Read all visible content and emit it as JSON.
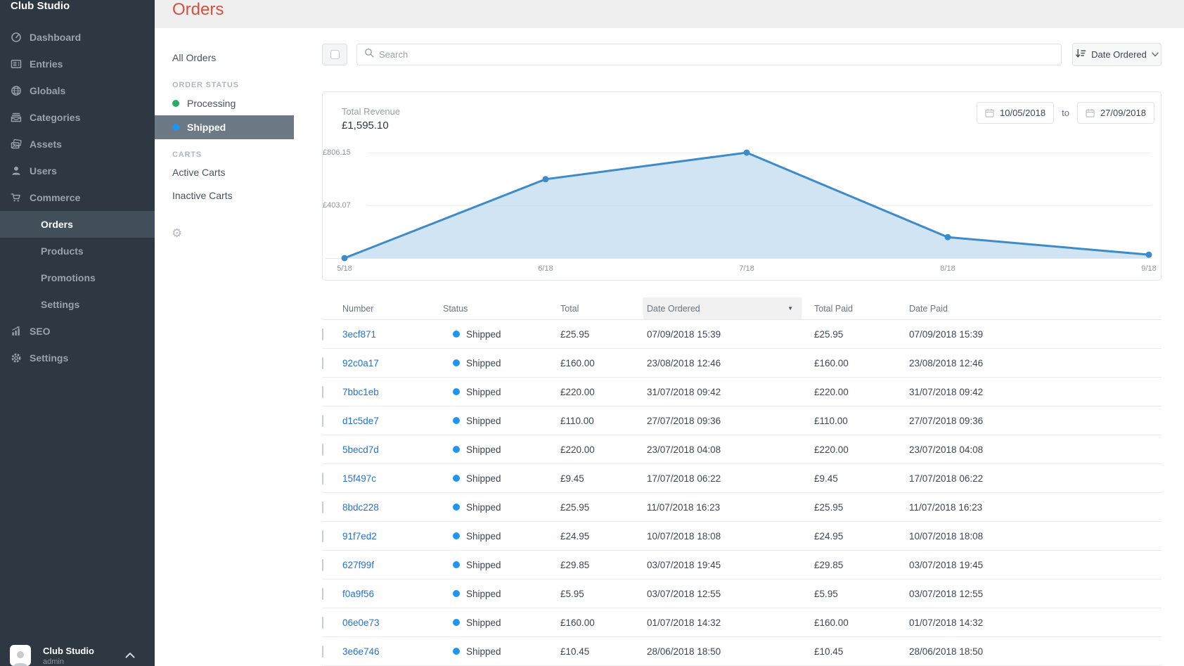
{
  "brand": "Club Studio",
  "page_title": "Orders",
  "sidebar": {
    "items": [
      {
        "label": "Dashboard",
        "icon": "gauge-icon"
      },
      {
        "label": "Entries",
        "icon": "entries-icon"
      },
      {
        "label": "Globals",
        "icon": "globe-icon"
      },
      {
        "label": "Categories",
        "icon": "categories-icon"
      },
      {
        "label": "Assets",
        "icon": "assets-icon"
      },
      {
        "label": "Users",
        "icon": "user-icon"
      },
      {
        "label": "Commerce",
        "icon": "cart-icon"
      }
    ],
    "commerce_subitems": [
      {
        "label": "Orders",
        "active": true
      },
      {
        "label": "Products",
        "active": false
      },
      {
        "label": "Promotions",
        "active": false
      },
      {
        "label": "Settings",
        "active": false
      }
    ],
    "footer_items": [
      {
        "label": "SEO",
        "icon": "seo-icon"
      },
      {
        "label": "Settings",
        "icon": "gear-icon"
      }
    ],
    "user": {
      "name": "Club Studio",
      "role": "admin"
    }
  },
  "subnav": {
    "all_orders_label": "All Orders",
    "order_status_heading": "ORDER STATUS",
    "statuses": [
      {
        "label": "Processing",
        "color": "#2bab63",
        "active": false
      },
      {
        "label": "Shipped",
        "color": "#1e96f0",
        "active": true
      }
    ],
    "carts_heading": "CARTS",
    "carts": [
      "Active Carts",
      "Inactive Carts"
    ]
  },
  "toolbar": {
    "search_placeholder": "Search",
    "sort_label": "Date Ordered"
  },
  "revenue": {
    "label": "Total Revenue",
    "value": "£1,595.10",
    "date_from": "10/05/2018",
    "to_label": "to",
    "date_to": "27/09/2018"
  },
  "chart_data": {
    "type": "area",
    "title": "Total Revenue",
    "x": [
      "5/18",
      "6/18",
      "7/18",
      "8/18",
      "9/18"
    ],
    "values": [
      0,
      603.0,
      806.15,
      160.0,
      25.95
    ],
    "y_gridlines": [
      {
        "label": "£806.15",
        "value": 806.15
      },
      {
        "label": "£403.07",
        "value": 403.07
      }
    ],
    "ylim": [
      0,
      806.15
    ],
    "grid": "horizontal-only",
    "legend": "none",
    "line_color": "#3d8cc9",
    "fill_color": "#c5ddf1"
  },
  "table": {
    "columns": [
      "Number",
      "Status",
      "Total",
      "Date Ordered",
      "Total Paid",
      "Date Paid"
    ],
    "sorted_column": "Date Ordered",
    "sort_direction": "desc",
    "status_dot_color": "#1e96f0",
    "rows": [
      {
        "number": "3ecf871",
        "status": "Shipped",
        "total": "£25.95",
        "date_ordered": "07/09/2018 15:39",
        "total_paid": "£25.95",
        "date_paid": "07/09/2018 15:39"
      },
      {
        "number": "92c0a17",
        "status": "Shipped",
        "total": "£160.00",
        "date_ordered": "23/08/2018 12:46",
        "total_paid": "£160.00",
        "date_paid": "23/08/2018 12:46"
      },
      {
        "number": "7bbc1eb",
        "status": "Shipped",
        "total": "£220.00",
        "date_ordered": "31/07/2018 09:42",
        "total_paid": "£220.00",
        "date_paid": "31/07/2018 09:42"
      },
      {
        "number": "d1c5de7",
        "status": "Shipped",
        "total": "£110.00",
        "date_ordered": "27/07/2018 09:36",
        "total_paid": "£110.00",
        "date_paid": "27/07/2018 09:36"
      },
      {
        "number": "5becd7d",
        "status": "Shipped",
        "total": "£220.00",
        "date_ordered": "23/07/2018 04:08",
        "total_paid": "£220.00",
        "date_paid": "23/07/2018 04:08"
      },
      {
        "number": "15f497c",
        "status": "Shipped",
        "total": "£9.45",
        "date_ordered": "17/07/2018 06:22",
        "total_paid": "£9.45",
        "date_paid": "17/07/2018 06:22"
      },
      {
        "number": "8bdc228",
        "status": "Shipped",
        "total": "£25.95",
        "date_ordered": "11/07/2018 16:23",
        "total_paid": "£25.95",
        "date_paid": "11/07/2018 16:23"
      },
      {
        "number": "91f7ed2",
        "status": "Shipped",
        "total": "£24.95",
        "date_ordered": "10/07/2018 18:08",
        "total_paid": "£24.95",
        "date_paid": "10/07/2018 18:08"
      },
      {
        "number": "627f99f",
        "status": "Shipped",
        "total": "£29.85",
        "date_ordered": "03/07/2018 19:45",
        "total_paid": "£29.85",
        "date_paid": "03/07/2018 19:45"
      },
      {
        "number": "f0a9f56",
        "status": "Shipped",
        "total": "£5.95",
        "date_ordered": "03/07/2018 12:55",
        "total_paid": "£5.95",
        "date_paid": "03/07/2018 12:55"
      },
      {
        "number": "06e0e73",
        "status": "Shipped",
        "total": "£160.00",
        "date_ordered": "01/07/2018 14:32",
        "total_paid": "£160.00",
        "date_paid": "01/07/2018 14:32"
      },
      {
        "number": "3e6e746",
        "status": "Shipped",
        "total": "£10.45",
        "date_ordered": "28/06/2018 18:50",
        "total_paid": "£10.45",
        "date_paid": "28/06/2018 18:50"
      }
    ]
  }
}
